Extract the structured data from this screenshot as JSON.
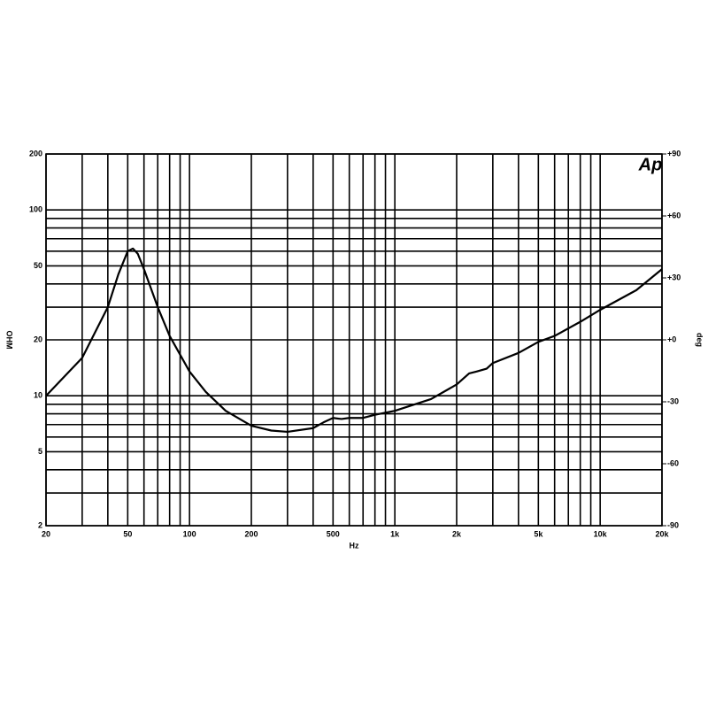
{
  "chart_data": {
    "type": "line",
    "x_label": "Hz",
    "y_label": "OHM",
    "y2_label": "deg",
    "logo": "Ap",
    "xscale": "log",
    "yscale": "log",
    "grid": true,
    "xlim": [
      20,
      20000
    ],
    "ylim": [
      2,
      200
    ],
    "y2lim": [
      -90,
      90
    ],
    "xticks": [
      20,
      50,
      100,
      200,
      500,
      {
        "value": 1000,
        "label": "1k"
      },
      {
        "value": 2000,
        "label": "2k"
      },
      {
        "value": 5000,
        "label": "5k"
      },
      {
        "value": 10000,
        "label": "10k"
      },
      {
        "value": 20000,
        "label": "20k"
      }
    ],
    "xminor_ticks": [
      30,
      40,
      60,
      70,
      80,
      90,
      300,
      400,
      600,
      700,
      800,
      900,
      3000,
      4000,
      6000,
      7000,
      8000,
      9000
    ],
    "yticks": [
      2,
      5,
      10,
      20,
      50,
      100,
      200
    ],
    "yminor_ticks": [
      3,
      4,
      6,
      7,
      8,
      9,
      30,
      40,
      60,
      70,
      80,
      90
    ],
    "y2ticks": [
      {
        "value": -90,
        "label": "-90"
      },
      {
        "value": -60,
        "label": "-60"
      },
      {
        "value": -30,
        "label": "-30"
      },
      {
        "value": 0,
        "label": "+0"
      },
      {
        "value": 30,
        "label": "+30"
      },
      {
        "value": 60,
        "label": "+60"
      },
      {
        "value": 90,
        "label": "+90"
      }
    ],
    "series": [
      {
        "color": "#000000",
        "x": [
          20,
          30,
          40,
          45,
          50,
          53,
          56,
          60,
          70,
          80,
          100,
          120,
          150,
          200,
          250,
          300,
          400,
          450,
          500,
          550,
          600,
          700,
          800,
          1000,
          1500,
          2000,
          2300,
          2500,
          2800,
          3000,
          4000,
          5000,
          6000,
          8000,
          10000,
          15000,
          20000
        ],
        "values": [
          10,
          16,
          30,
          45,
          60,
          62,
          58,
          48,
          30,
          21,
          13.5,
          10.5,
          8.3,
          6.9,
          6.5,
          6.4,
          6.7,
          7.2,
          7.6,
          7.5,
          7.6,
          7.6,
          7.9,
          8.3,
          9.6,
          11.5,
          13.2,
          13.5,
          14,
          15,
          17,
          19.5,
          21,
          25,
          29,
          37,
          48
        ]
      }
    ]
  }
}
